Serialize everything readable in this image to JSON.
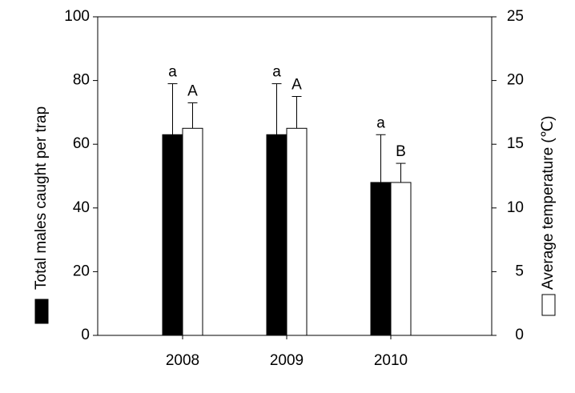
{
  "chart_data": {
    "type": "bar",
    "categories": [
      "2008",
      "2009",
      "2010"
    ],
    "ylabel": "Total males caught per trap",
    "y2label": "Average temperature (℃)",
    "ylim": [
      0,
      100
    ],
    "yticks": [
      0,
      20,
      40,
      60,
      80,
      100
    ],
    "y2lim": [
      0,
      25
    ],
    "y2ticks": [
      0,
      5,
      10,
      15,
      20,
      25
    ],
    "series": [
      {
        "color": "#000000",
        "values": [
          63,
          63,
          48
        ],
        "errors": [
          16,
          16,
          15
        ],
        "letters": [
          "a",
          "a",
          "a"
        ]
      },
      {
        "color": "#ffffff",
        "axis": "y2",
        "values": [
          16.25,
          16.25,
          12
        ],
        "errors": [
          2,
          2.5,
          1.5
        ],
        "letters": [
          "A",
          "A",
          "B"
        ]
      }
    ]
  }
}
